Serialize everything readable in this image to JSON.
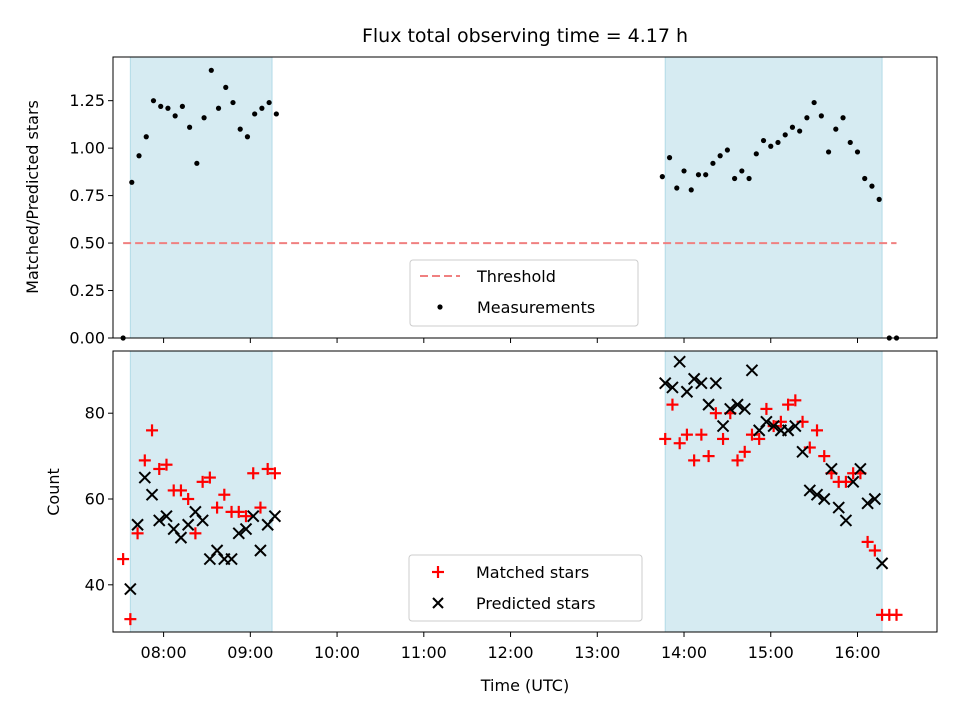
{
  "chart_data": [
    {
      "type": "scatter",
      "title": "Flux total observing time = 4.17 h",
      "xlabel": "",
      "ylabel": "Matched/Predicted stars",
      "xlim": [
        "07:25",
        "16:55"
      ],
      "ylim": [
        0,
        1.48
      ],
      "y_ticks": [
        "0.00",
        "0.25",
        "0.50",
        "0.75",
        "1.00",
        "1.25"
      ],
      "shaded_intervals": [
        [
          "07:37",
          "09:15"
        ],
        [
          "13:47",
          "16:17"
        ]
      ],
      "shade_color": "#add8e6",
      "threshold": {
        "name": "Threshold",
        "value": 0.5,
        "x": [
          "07:32",
          "16:27"
        ],
        "color": "#f08080"
      },
      "legend": {
        "placement": "lower center",
        "entries": [
          "Threshold",
          "Measurements"
        ]
      },
      "series": [
        {
          "name": "Measurements",
          "color": "#000000",
          "marker": "dot",
          "points": [
            [
              "07:32",
              0.0
            ],
            [
              "07:38",
              0.82
            ],
            [
              "07:43",
              0.96
            ],
            [
              "07:48",
              1.06
            ],
            [
              "07:53",
              1.25
            ],
            [
              "07:58",
              1.22
            ],
            [
              "08:03",
              1.21
            ],
            [
              "08:08",
              1.17
            ],
            [
              "08:13",
              1.22
            ],
            [
              "08:18",
              1.11
            ],
            [
              "08:23",
              0.92
            ],
            [
              "08:28",
              1.16
            ],
            [
              "08:33",
              1.41
            ],
            [
              "08:38",
              1.21
            ],
            [
              "08:43",
              1.32
            ],
            [
              "08:48",
              1.24
            ],
            [
              "08:53",
              1.1
            ],
            [
              "08:58",
              1.06
            ],
            [
              "09:03",
              1.18
            ],
            [
              "09:08",
              1.21
            ],
            [
              "09:13",
              1.24
            ],
            [
              "09:18",
              1.18
            ],
            [
              "13:45",
              0.85
            ],
            [
              "13:50",
              0.95
            ],
            [
              "13:55",
              0.79
            ],
            [
              "14:00",
              0.88
            ],
            [
              "14:05",
              0.78
            ],
            [
              "14:10",
              0.86
            ],
            [
              "14:15",
              0.86
            ],
            [
              "14:20",
              0.92
            ],
            [
              "14:25",
              0.96
            ],
            [
              "14:30",
              0.99
            ],
            [
              "14:35",
              0.84
            ],
            [
              "14:40",
              0.88
            ],
            [
              "14:45",
              0.84
            ],
            [
              "14:50",
              0.97
            ],
            [
              "14:55",
              1.04
            ],
            [
              "15:00",
              1.01
            ],
            [
              "15:05",
              1.03
            ],
            [
              "15:10",
              1.07
            ],
            [
              "15:15",
              1.11
            ],
            [
              "15:20",
              1.09
            ],
            [
              "15:25",
              1.16
            ],
            [
              "15:30",
              1.24
            ],
            [
              "15:35",
              1.17
            ],
            [
              "15:40",
              0.98
            ],
            [
              "15:45",
              1.1
            ],
            [
              "15:50",
              1.16
            ],
            [
              "15:55",
              1.03
            ],
            [
              "16:00",
              0.98
            ],
            [
              "16:05",
              0.84
            ],
            [
              "16:10",
              0.8
            ],
            [
              "16:15",
              0.73
            ],
            [
              "16:22",
              0.0
            ],
            [
              "16:27",
              0.0
            ]
          ]
        }
      ]
    },
    {
      "type": "scatter",
      "title": "",
      "xlabel": "Time (UTC)",
      "ylabel": "Count",
      "xlim": [
        "07:25",
        "16:55"
      ],
      "ylim": [
        29,
        94.5
      ],
      "x_ticks": [
        "08:00",
        "09:00",
        "10:00",
        "11:00",
        "12:00",
        "13:00",
        "14:00",
        "15:00",
        "16:00"
      ],
      "y_ticks": [
        "40",
        "60",
        "80"
      ],
      "shaded_intervals": [
        [
          "07:37",
          "09:15"
        ],
        [
          "13:47",
          "16:17"
        ]
      ],
      "shade_color": "#add8e6",
      "legend": {
        "placement": "lower center",
        "entries": [
          "Matched stars",
          "Predicted stars"
        ]
      },
      "series": [
        {
          "name": "Matched stars",
          "color": "#ff0000",
          "marker": "plus",
          "points": [
            [
              "07:32",
              46
            ],
            [
              "07:37",
              32
            ],
            [
              "07:42",
              52
            ],
            [
              "07:47",
              69
            ],
            [
              "07:52",
              76
            ],
            [
              "07:57",
              67
            ],
            [
              "08:02",
              68
            ],
            [
              "08:07",
              62
            ],
            [
              "08:12",
              62
            ],
            [
              "08:17",
              60
            ],
            [
              "08:22",
              52
            ],
            [
              "08:27",
              64
            ],
            [
              "08:32",
              65
            ],
            [
              "08:37",
              58
            ],
            [
              "08:42",
              61
            ],
            [
              "08:47",
              57
            ],
            [
              "08:52",
              57
            ],
            [
              "08:57",
              56
            ],
            [
              "09:02",
              66
            ],
            [
              "09:07",
              58
            ],
            [
              "09:12",
              67
            ],
            [
              "09:17",
              66
            ],
            [
              "13:47",
              74
            ],
            [
              "13:52",
              82
            ],
            [
              "13:57",
              73
            ],
            [
              "14:02",
              75
            ],
            [
              "14:07",
              69
            ],
            [
              "14:12",
              75
            ],
            [
              "14:17",
              70
            ],
            [
              "14:22",
              80
            ],
            [
              "14:27",
              74
            ],
            [
              "14:32",
              80
            ],
            [
              "14:37",
              69
            ],
            [
              "14:42",
              71
            ],
            [
              "14:47",
              75
            ],
            [
              "14:52",
              74
            ],
            [
              "14:57",
              81
            ],
            [
              "15:02",
              77
            ],
            [
              "15:07",
              78
            ],
            [
              "15:12",
              82
            ],
            [
              "15:17",
              83
            ],
            [
              "15:22",
              78
            ],
            [
              "15:27",
              72
            ],
            [
              "15:32",
              76
            ],
            [
              "15:37",
              70
            ],
            [
              "15:42",
              66
            ],
            [
              "15:47",
              64
            ],
            [
              "15:52",
              64
            ],
            [
              "15:57",
              66
            ],
            [
              "16:02",
              66
            ],
            [
              "16:07",
              50
            ],
            [
              "16:12",
              48
            ],
            [
              "16:17",
              33
            ],
            [
              "16:22",
              33
            ],
            [
              "16:27",
              33
            ]
          ]
        },
        {
          "name": "Predicted stars",
          "color": "#000000",
          "marker": "x",
          "points": [
            [
              "07:37",
              39
            ],
            [
              "07:42",
              54
            ],
            [
              "07:47",
              65
            ],
            [
              "07:52",
              61
            ],
            [
              "07:57",
              55
            ],
            [
              "08:02",
              56
            ],
            [
              "08:07",
              53
            ],
            [
              "08:12",
              51
            ],
            [
              "08:17",
              54
            ],
            [
              "08:22",
              57
            ],
            [
              "08:27",
              55
            ],
            [
              "08:32",
              46
            ],
            [
              "08:37",
              48
            ],
            [
              "08:42",
              46
            ],
            [
              "08:47",
              46
            ],
            [
              "08:52",
              52
            ],
            [
              "08:57",
              53
            ],
            [
              "09:02",
              56
            ],
            [
              "09:07",
              48
            ],
            [
              "09:12",
              54
            ],
            [
              "09:17",
              56
            ],
            [
              "13:47",
              87
            ],
            [
              "13:52",
              86
            ],
            [
              "13:57",
              92
            ],
            [
              "14:02",
              85
            ],
            [
              "14:07",
              88
            ],
            [
              "14:12",
              87
            ],
            [
              "14:17",
              82
            ],
            [
              "14:22",
              87
            ],
            [
              "14:27",
              77
            ],
            [
              "14:32",
              81
            ],
            [
              "14:37",
              82
            ],
            [
              "14:42",
              81
            ],
            [
              "14:47",
              90
            ],
            [
              "14:52",
              76
            ],
            [
              "14:57",
              78
            ],
            [
              "15:02",
              77
            ],
            [
              "15:07",
              76
            ],
            [
              "15:12",
              76
            ],
            [
              "15:17",
              77
            ],
            [
              "15:22",
              71
            ],
            [
              "15:27",
              62
            ],
            [
              "15:32",
              61
            ],
            [
              "15:37",
              60
            ],
            [
              "15:42",
              67
            ],
            [
              "15:47",
              58
            ],
            [
              "15:52",
              55
            ],
            [
              "15:57",
              64
            ],
            [
              "16:02",
              67
            ],
            [
              "16:07",
              59
            ],
            [
              "16:12",
              60
            ],
            [
              "16:17",
              45
            ]
          ]
        }
      ]
    }
  ]
}
